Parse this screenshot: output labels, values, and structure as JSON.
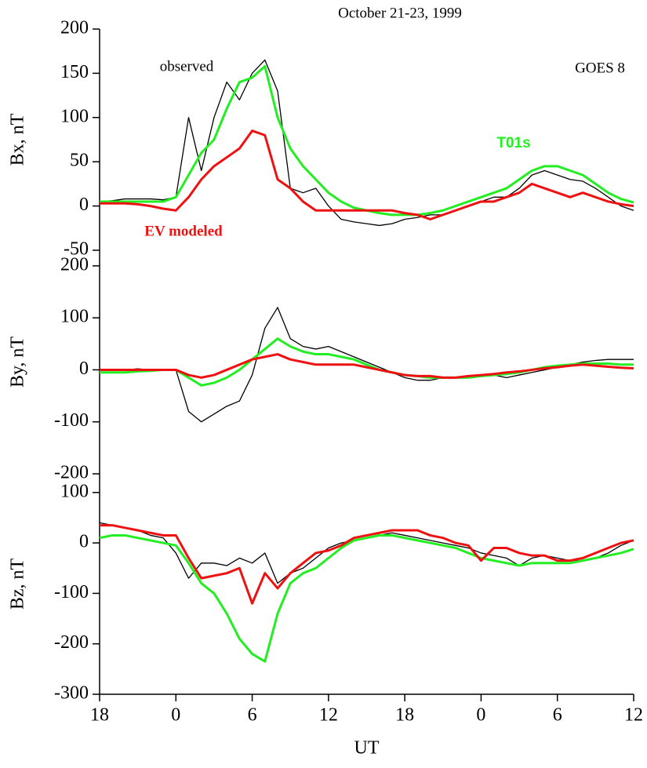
{
  "chart_data": [
    {
      "type": "line",
      "title": "October 21-23, 1999",
      "y_label": "Bx, nT",
      "annotations": [
        "GOES 8"
      ],
      "x": [
        0,
        1,
        2,
        3,
        4,
        5,
        6,
        7,
        8,
        9,
        10,
        11,
        12,
        13,
        14,
        15,
        16,
        17,
        18,
        19,
        20,
        21,
        22,
        23,
        24,
        25,
        26,
        27,
        28,
        29,
        30,
        31,
        32,
        33,
        34,
        35,
        36,
        37,
        38,
        39,
        40,
        41,
        42
      ],
      "xlim": [
        0,
        42
      ],
      "ylim": [
        -50,
        200
      ],
      "yticks": [
        -50,
        0,
        50,
        100,
        150,
        200
      ],
      "series": [
        {
          "name": "observed",
          "color": "#000000",
          "values": [
            5,
            6,
            8,
            8,
            8,
            7,
            10,
            100,
            40,
            100,
            140,
            120,
            150,
            165,
            130,
            20,
            15,
            20,
            0,
            -15,
            -18,
            -20,
            -22,
            -20,
            -15,
            -13,
            -10,
            -10,
            -5,
            0,
            5,
            10,
            10,
            20,
            35,
            40,
            35,
            30,
            28,
            20,
            10,
            0,
            -5
          ]
        },
        {
          "name": "T01s",
          "color": "#22ee22",
          "values": [
            5,
            5,
            5,
            5,
            5,
            5,
            10,
            35,
            60,
            75,
            110,
            140,
            145,
            158,
            100,
            65,
            45,
            30,
            15,
            5,
            -2,
            -5,
            -8,
            -10,
            -10,
            -10,
            -8,
            -5,
            0,
            5,
            10,
            15,
            20,
            30,
            40,
            45,
            45,
            40,
            35,
            25,
            15,
            8,
            4
          ]
        },
        {
          "name": "EV modeled",
          "color": "#ee1111",
          "values": [
            3,
            3,
            3,
            2,
            0,
            -3,
            -5,
            10,
            30,
            45,
            55,
            65,
            85,
            80,
            30,
            20,
            5,
            -5,
            -5,
            -5,
            -5,
            -5,
            -5,
            -5,
            -8,
            -10,
            -15,
            -10,
            -5,
            0,
            5,
            5,
            10,
            15,
            25,
            20,
            15,
            10,
            15,
            10,
            5,
            2,
            0
          ]
        }
      ]
    },
    {
      "type": "line",
      "y_label": "By, nT",
      "x": [
        0,
        1,
        2,
        3,
        4,
        5,
        6,
        7,
        8,
        9,
        10,
        11,
        12,
        13,
        14,
        15,
        16,
        17,
        18,
        19,
        20,
        21,
        22,
        23,
        24,
        25,
        26,
        27,
        28,
        29,
        30,
        31,
        32,
        33,
        34,
        35,
        36,
        37,
        38,
        39,
        40,
        41,
        42
      ],
      "xlim": [
        0,
        42
      ],
      "ylim": [
        -200,
        230
      ],
      "yticks": [
        -200,
        -100,
        0,
        100,
        200
      ],
      "series": [
        {
          "color": "#000000",
          "values": [
            0,
            0,
            0,
            2,
            0,
            0,
            0,
            -80,
            -100,
            -85,
            -70,
            -60,
            -10,
            80,
            120,
            60,
            45,
            40,
            45,
            35,
            25,
            15,
            5,
            -5,
            -15,
            -20,
            -20,
            -15,
            -15,
            -15,
            -12,
            -10,
            -15,
            -10,
            -5,
            0,
            5,
            10,
            15,
            18,
            20,
            20,
            20
          ]
        },
        {
          "color": "#22ee22",
          "values": [
            -5,
            -5,
            -5,
            -3,
            -2,
            0,
            0,
            -15,
            -30,
            -25,
            -15,
            0,
            20,
            40,
            60,
            45,
            35,
            30,
            30,
            25,
            20,
            10,
            0,
            -5,
            -10,
            -12,
            -15,
            -15,
            -15,
            -15,
            -12,
            -10,
            -8,
            -5,
            0,
            5,
            8,
            10,
            12,
            12,
            12,
            10,
            10
          ]
        },
        {
          "color": "#ee1111",
          "values": [
            0,
            0,
            0,
            0,
            0,
            0,
            0,
            -10,
            -15,
            -10,
            0,
            10,
            20,
            25,
            30,
            20,
            15,
            10,
            10,
            10,
            10,
            5,
            0,
            -5,
            -10,
            -12,
            -12,
            -15,
            -15,
            -12,
            -10,
            -8,
            -5,
            -3,
            0,
            3,
            5,
            8,
            10,
            8,
            6,
            4,
            3
          ]
        }
      ]
    },
    {
      "type": "line",
      "y_label": "Bz, nT",
      "x_label": "UT",
      "x": [
        0,
        1,
        2,
        3,
        4,
        5,
        6,
        7,
        8,
        9,
        10,
        11,
        12,
        13,
        14,
        15,
        16,
        17,
        18,
        19,
        20,
        21,
        22,
        23,
        24,
        25,
        26,
        27,
        28,
        29,
        30,
        31,
        32,
        33,
        34,
        35,
        36,
        37,
        38,
        39,
        40,
        41,
        42
      ],
      "xlim": [
        0,
        42
      ],
      "ylim": [
        -300,
        137
      ],
      "yticks": [
        -300,
        -200,
        -100,
        0,
        100
      ],
      "xticks": [
        {
          "value": 0,
          "label": "18"
        },
        {
          "value": 6,
          "label": "0"
        },
        {
          "value": 12,
          "label": "6"
        },
        {
          "value": 18,
          "label": "12"
        },
        {
          "value": 24,
          "label": "18"
        },
        {
          "value": 30,
          "label": "0"
        },
        {
          "value": 36,
          "label": "6"
        },
        {
          "value": 42,
          "label": "12"
        }
      ],
      "series": [
        {
          "color": "#000000",
          "values": [
            40,
            35,
            30,
            25,
            15,
            10,
            -20,
            -70,
            -40,
            -40,
            -45,
            -30,
            -40,
            -20,
            -80,
            -60,
            -50,
            -30,
            -10,
            0,
            5,
            10,
            15,
            20,
            15,
            10,
            5,
            0,
            -5,
            -10,
            -20,
            -25,
            -30,
            -45,
            -30,
            -25,
            -30,
            -35,
            -35,
            -30,
            -20,
            -5,
            5
          ]
        },
        {
          "color": "#22ee22",
          "values": [
            10,
            15,
            15,
            10,
            5,
            0,
            -5,
            -40,
            -80,
            -100,
            -140,
            -190,
            -220,
            -235,
            -140,
            -80,
            -60,
            -50,
            -30,
            -10,
            5,
            10,
            15,
            15,
            10,
            5,
            0,
            -5,
            -10,
            -20,
            -30,
            -35,
            -40,
            -45,
            -40,
            -40,
            -40,
            -40,
            -35,
            -30,
            -25,
            -20,
            -12
          ]
        },
        {
          "color": "#ee1111",
          "values": [
            35,
            35,
            30,
            25,
            20,
            15,
            15,
            -30,
            -70,
            -65,
            -60,
            -50,
            -120,
            -60,
            -90,
            -60,
            -40,
            -20,
            -15,
            -5,
            10,
            15,
            20,
            25,
            25,
            25,
            15,
            10,
            0,
            -5,
            -35,
            -10,
            -10,
            -20,
            -25,
            -25,
            -35,
            -35,
            -30,
            -20,
            -10,
            0,
            5
          ]
        }
      ]
    }
  ]
}
